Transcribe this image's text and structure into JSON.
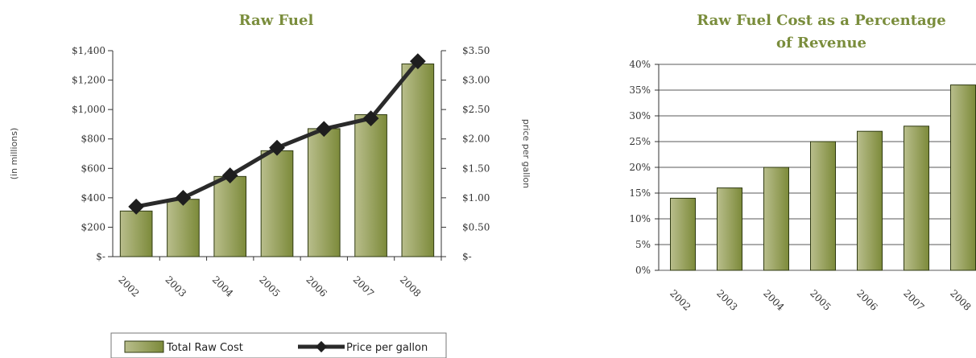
{
  "colors": {
    "bar_top": "#b9be8c",
    "bar_bottom": "#7c8a3a",
    "bar_stroke": "#2f3a12",
    "line": "#2a2a2a",
    "title": "#7a8d3c",
    "grid": "#222222"
  },
  "chart_data": [
    {
      "type": "bar+line",
      "title": "Raw Fuel",
      "categories": [
        "2002",
        "2003",
        "2004",
        "2005",
        "2006",
        "2007",
        "2008"
      ],
      "y_tick_labels": [
        "$-",
        "$200",
        "$400",
        "$600",
        "$800",
        "$1,000",
        "$1,200",
        "$1,400"
      ],
      "y2_tick_labels": [
        "$-",
        "$0.50",
        "$1.00",
        "$1.50",
        "$2.00",
        "$2.50",
        "$3.00",
        "$3.50"
      ],
      "ylabel": "(in millions)",
      "y2label": "price per gallon",
      "ylim": [
        0,
        1400
      ],
      "y2lim": [
        0,
        3.5
      ],
      "grid": false,
      "legend_position": "bottom",
      "series": [
        {
          "name": "Total Raw Cost",
          "type": "bar",
          "axis": "left",
          "values": [
            310,
            390,
            545,
            720,
            870,
            965,
            1310
          ]
        },
        {
          "name": "Price per gallon",
          "type": "line",
          "axis": "right",
          "values": [
            0.85,
            1.0,
            1.38,
            1.85,
            2.17,
            2.35,
            3.32
          ]
        }
      ]
    },
    {
      "type": "bar",
      "title": "Raw Fuel Cost as a Percentage of Revenue",
      "title_lines": [
        "Raw Fuel Cost as a Percentage",
        "of Revenue"
      ],
      "categories": [
        "2002",
        "2003",
        "2004",
        "2005",
        "2006",
        "2007",
        "2008"
      ],
      "y_tick_labels": [
        "0%",
        "5%",
        "10%",
        "15%",
        "20%",
        "25%",
        "30%",
        "35%",
        "40%"
      ],
      "ylim": [
        0,
        40
      ],
      "grid": true,
      "series": [
        {
          "type": "bar",
          "values": [
            14,
            16,
            20,
            25,
            27,
            28,
            36
          ]
        }
      ]
    }
  ]
}
